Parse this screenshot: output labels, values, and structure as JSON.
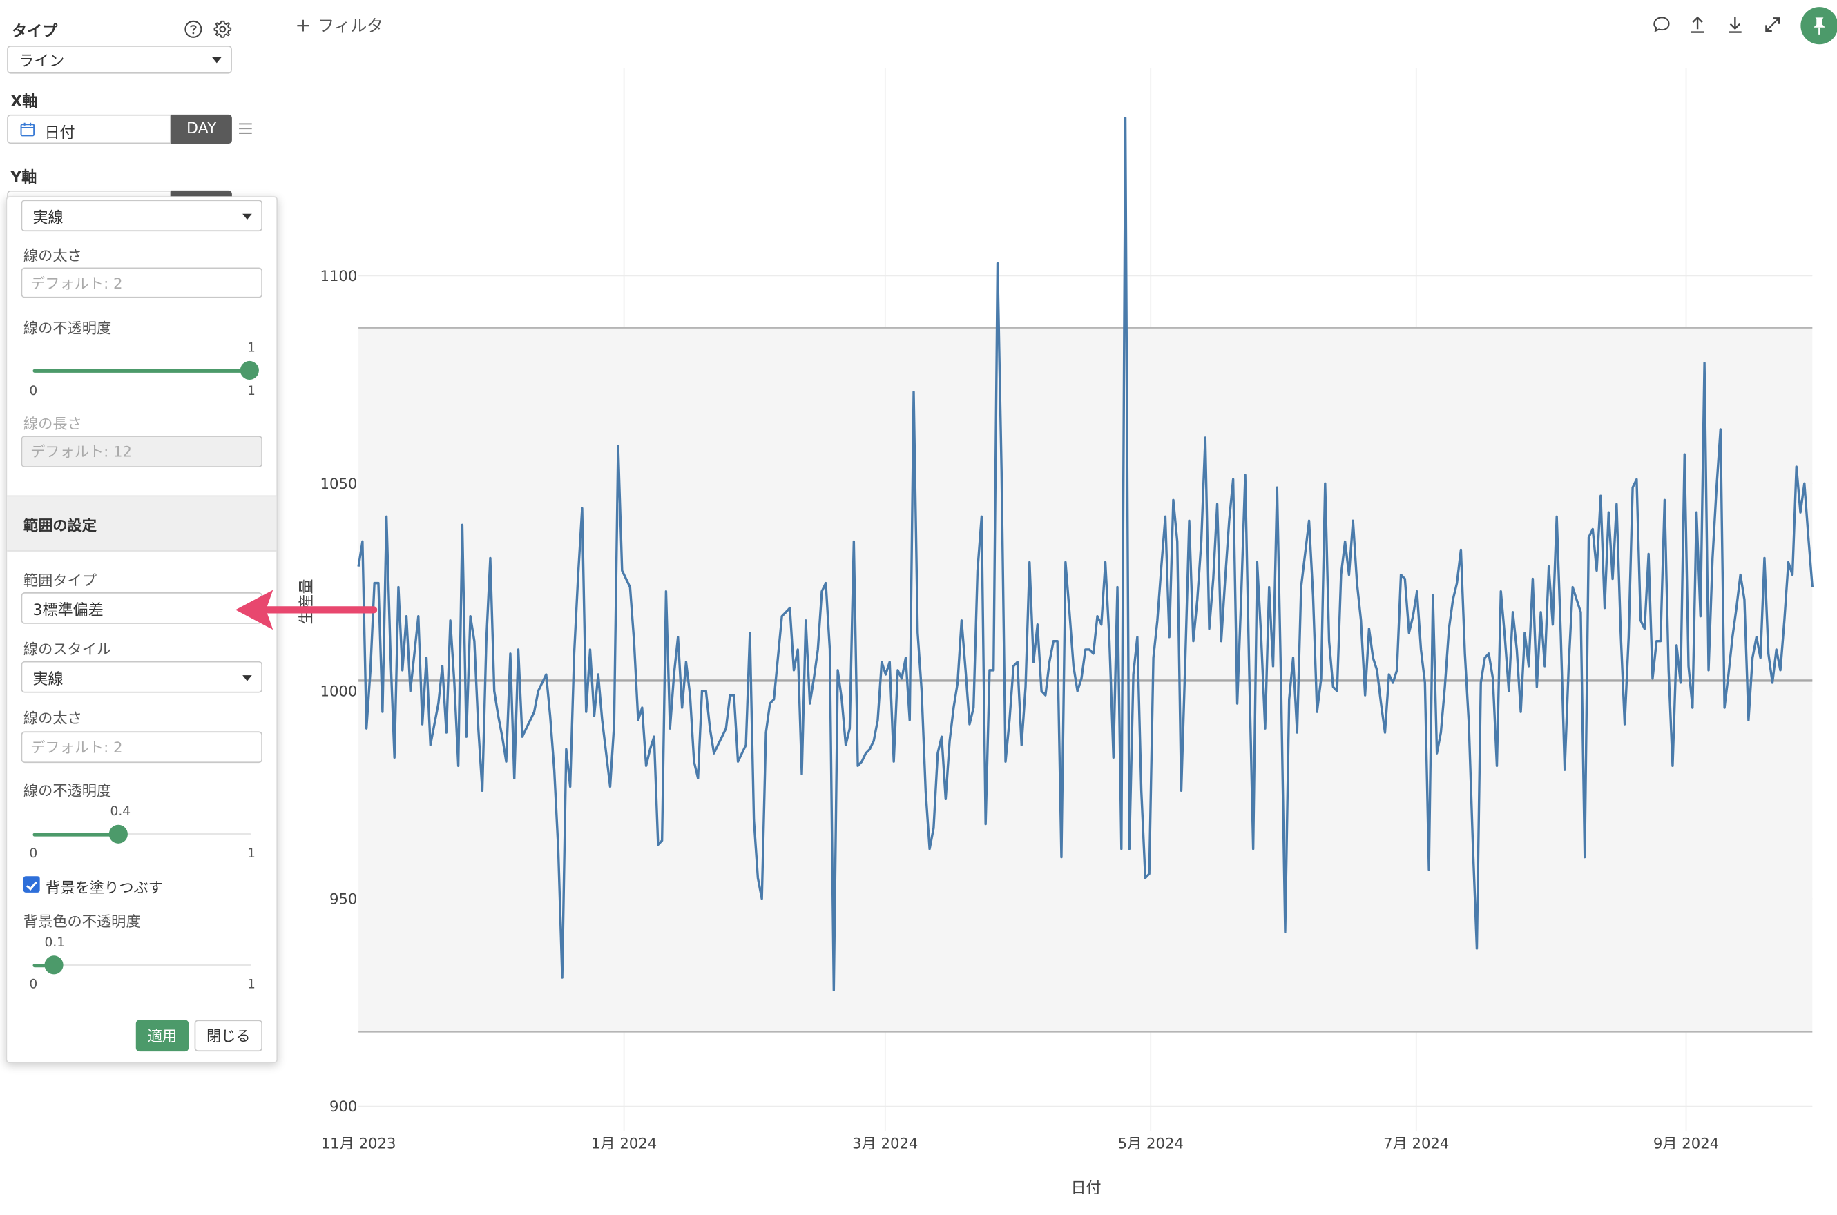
{
  "sidebar": {
    "type_label": "タイプ",
    "type_value": "ライン",
    "xaxis_label": "X軸",
    "xaxis_field": "日付",
    "xaxis_unit": "DAY",
    "yaxis_label": "Y軸"
  },
  "popup": {
    "line_style_top": "実線",
    "line_width_label": "線の太さ",
    "line_width_placeholder": "デフォルト: 2",
    "line_opacity_label": "線の不透明度",
    "line_opacity_value": "1",
    "line_opacity_min": "0",
    "line_opacity_max": "1",
    "line_length_label": "線の長さ",
    "line_length_placeholder": "デフォルト: 12",
    "range_section_title": "範囲の設定",
    "range_type_label": "範囲タイプ",
    "range_type_value": "3標準偏差",
    "range_line_style_label": "線のスタイル",
    "range_line_style_value": "実線",
    "range_line_width_label": "線の太さ",
    "range_line_width_placeholder": "デフォルト: 2",
    "range_opacity_label": "線の不透明度",
    "range_opacity_value": "0.4",
    "range_opacity_min": "0",
    "range_opacity_max": "1",
    "fill_bg_label": "背景を塗りつぶす",
    "fill_bg_checked": true,
    "bg_opacity_label": "背景色の不透明度",
    "bg_opacity_value": "0.1",
    "bg_opacity_min": "0",
    "bg_opacity_max": "1",
    "apply_label": "適用",
    "close_label": "閉じる"
  },
  "toolbar": {
    "filter_label": "フィルタ",
    "icons": [
      "comment-icon",
      "upload-icon",
      "download-icon",
      "expand-icon",
      "pin-icon"
    ]
  },
  "colors": {
    "line": "#4a7bab",
    "accent": "#4c9a6a",
    "arrow": "#e8476e",
    "band_fill": "#f5f5f5",
    "band_line": "#b5b5b5"
  },
  "chart_data": {
    "type": "line",
    "xlabel": "日付",
    "ylabel": "生産量",
    "x_start": "2023-11-01",
    "x_end": "2024-09-30",
    "x_tick_labels": [
      "11月 2023",
      "1月 2024",
      "3月 2024",
      "5月 2024",
      "7月 2024",
      "9月 2024"
    ],
    "y_ticks": [
      900,
      950,
      1000,
      1050,
      1100
    ],
    "ylim": [
      894,
      1150
    ],
    "mean": 1002.5,
    "upper_band": 1087.5,
    "lower_band": 918,
    "grid": true,
    "series": [
      {
        "values": [
          1030,
          1036,
          991,
          1005,
          1026,
          1026,
          995,
          1042,
          1009,
          984,
          1025,
          1005,
          1018,
          1000,
          1009,
          1018,
          992,
          1008,
          987,
          992,
          997,
          1006,
          990,
          1017,
          1002,
          982,
          1040,
          989,
          1018,
          1012,
          991,
          976,
          1012,
          1032,
          1000,
          994,
          989,
          983,
          1009,
          979,
          1010,
          989,
          991,
          993,
          995,
          1000,
          1002,
          1004,
          994,
          981,
          962,
          931,
          986,
          977,
          1009,
          1028,
          1044,
          995,
          1010,
          994,
          1004,
          993,
          985,
          977,
          992,
          1059,
          1029,
          1027,
          1025,
          1012,
          993,
          996,
          982,
          986,
          989,
          963,
          964,
          1024,
          991,
          1004,
          1013,
          996,
          1007,
          999,
          983,
          979,
          1000,
          1000,
          991,
          985,
          987,
          989,
          991,
          999,
          999,
          983,
          985,
          987,
          1014,
          969,
          955,
          950,
          990,
          997,
          998,
          1008,
          1018,
          1019,
          1020,
          1005,
          1010,
          980,
          1017,
          997,
          1003,
          1010,
          1024,
          1026,
          1010,
          928,
          1005,
          998,
          987,
          991,
          1036,
          982,
          983,
          985,
          986,
          988,
          993,
          1007,
          1004,
          1007,
          983,
          1005,
          1003,
          1008,
          993,
          1072,
          1014,
          1000,
          976,
          962,
          967,
          985,
          989,
          974,
          988,
          996,
          1002,
          1017,
          1005,
          992,
          996,
          1029,
          1042,
          968,
          1005,
          1005,
          1103,
          1053,
          983,
          993,
          1006,
          1007,
          987,
          1001,
          1031,
          1007,
          1016,
          1000,
          999,
          1007,
          1012,
          1012,
          960,
          1031,
          1019,
          1006,
          1000,
          1003,
          1010,
          1010,
          1009,
          1018,
          1016,
          1031,
          1012,
          984,
          1025,
          962,
          1138,
          962,
          1004,
          1013,
          976,
          955,
          956,
          1008,
          1017,
          1030,
          1042,
          1013,
          1046,
          1036,
          976,
          1007,
          1041,
          1012,
          1022,
          1036,
          1061,
          1015,
          1027,
          1045,
          1012,
          1027,
          1041,
          1051,
          997,
          1023,
          1052,
          1005,
          962,
          1031,
          1013,
          991,
          1025,
          1006,
          1049,
          1000,
          942,
          998,
          1008,
          990,
          1025,
          1033,
          1041,
          1023,
          995,
          1003,
          1050,
          1012,
          1001,
          1000,
          1028,
          1036,
          1028,
          1041,
          1026,
          1017,
          999,
          1015,
          1008,
          1005,
          997,
          990,
          1004,
          1002,
          1005,
          1028,
          1027,
          1014,
          1018,
          1024,
          1010,
          1002,
          957,
          1023,
          985,
          990,
          1001,
          1015,
          1022,
          1026,
          1034,
          1009,
          992,
          963,
          938,
          1002,
          1008,
          1009,
          1003,
          982,
          1024,
          1013,
          1000,
          1019,
          1010,
          995,
          1014,
          1006,
          1027,
          1001,
          1019,
          1006,
          1030,
          1016,
          1042,
          1014,
          981,
          1006,
          1025,
          1022,
          1019,
          960,
          1037,
          1039,
          1029,
          1047,
          1020,
          1043,
          1027,
          1045,
          1014,
          992,
          1013,
          1049,
          1051,
          1017,
          1015,
          1033,
          1003,
          1012,
          1012,
          1046,
          1005,
          982,
          1011,
          1002,
          1057,
          1006,
          996,
          1043,
          1018,
          1079,
          1005,
          1032,
          1049,
          1063,
          996,
          1004,
          1013,
          1020,
          1028,
          1022,
          993,
          1008,
          1013,
          1008,
          1032,
          1009,
          1002,
          1010,
          1005,
          1017,
          1031,
          1028,
          1054,
          1043,
          1050,
          1037,
          1025
        ]
      }
    ]
  }
}
